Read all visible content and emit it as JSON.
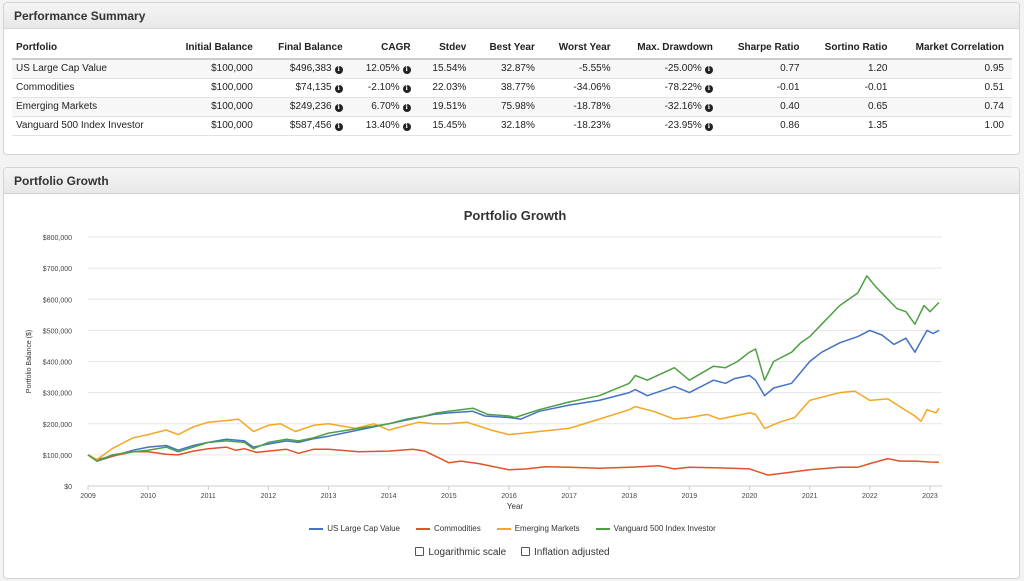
{
  "summary": {
    "title": "Performance Summary",
    "columns": [
      "Portfolio",
      "Initial Balance",
      "Final Balance",
      "CAGR",
      "Stdev",
      "Best Year",
      "Worst Year",
      "Max. Drawdown",
      "Sharpe Ratio",
      "Sortino Ratio",
      "Market Correlation"
    ],
    "rows": [
      {
        "portfolio": "US Large Cap Value",
        "initial": "$100,000",
        "final": "$496,383",
        "cagr": "12.05%",
        "stdev": "15.54%",
        "best": "32.87%",
        "worst": "-5.55%",
        "drawdown": "-25.00%",
        "sharpe": "0.77",
        "sortino": "1.20",
        "corr": "0.95"
      },
      {
        "portfolio": "Commodities",
        "initial": "$100,000",
        "final": "$74,135",
        "cagr": "-2.10%",
        "stdev": "22.03%",
        "best": "38.77%",
        "worst": "-34.06%",
        "drawdown": "-78.22%",
        "sharpe": "-0.01",
        "sortino": "-0.01",
        "corr": "0.51"
      },
      {
        "portfolio": "Emerging Markets",
        "initial": "$100,000",
        "final": "$249,236",
        "cagr": "6.70%",
        "stdev": "19.51%",
        "best": "75.98%",
        "worst": "-18.78%",
        "drawdown": "-32.16%",
        "sharpe": "0.40",
        "sortino": "0.65",
        "corr": "0.74"
      },
      {
        "portfolio": "Vanguard 500 Index Investor",
        "initial": "$100,000",
        "final": "$587,456",
        "cagr": "13.40%",
        "stdev": "15.45%",
        "best": "32.18%",
        "worst": "-18.23%",
        "drawdown": "-23.95%",
        "sharpe": "0.86",
        "sortino": "1.35",
        "corr": "1.00"
      }
    ],
    "info_icon": "info-circle-icon"
  },
  "growth": {
    "panel_title": "Portfolio Growth",
    "options": {
      "log_label": "Logarithmic scale",
      "inflation_label": "Inflation adjusted",
      "log_checked": false,
      "inflation_checked": false
    }
  },
  "chart_data": {
    "type": "line",
    "title": "Portfolio Growth",
    "xlabel": "Year",
    "ylabel": "Portfolio Balance ($)",
    "xlim": [
      2009.0,
      2023.2
    ],
    "ylim": [
      0,
      800000
    ],
    "xticks": [
      "2009",
      "2010",
      "2011",
      "2012",
      "2013",
      "2014",
      "2015",
      "2016",
      "2017",
      "2018",
      "2019",
      "2020",
      "2021",
      "2022",
      "2023"
    ],
    "yticks": [
      "$0",
      "$100,000",
      "$200,000",
      "$300,000",
      "$400,000",
      "$500,000",
      "$600,000",
      "$700,000",
      "$800,000"
    ],
    "grid": true,
    "legend_position": "bottom",
    "series": [
      {
        "name": "US Large Cap Value",
        "color": "#4472c4",
        "points": [
          [
            2009.0,
            100000
          ],
          [
            2009.15,
            80000
          ],
          [
            2009.4,
            95000
          ],
          [
            2009.75,
            115000
          ],
          [
            2010.0,
            125000
          ],
          [
            2010.3,
            130000
          ],
          [
            2010.5,
            115000
          ],
          [
            2010.75,
            130000
          ],
          [
            2011.0,
            140000
          ],
          [
            2011.3,
            150000
          ],
          [
            2011.6,
            145000
          ],
          [
            2011.75,
            125000
          ],
          [
            2012.0,
            135000
          ],
          [
            2012.3,
            145000
          ],
          [
            2012.5,
            140000
          ],
          [
            2012.75,
            152000
          ],
          [
            2013.0,
            160000
          ],
          [
            2013.5,
            180000
          ],
          [
            2014.0,
            200000
          ],
          [
            2014.25,
            210000
          ],
          [
            2014.5,
            220000
          ],
          [
            2014.75,
            230000
          ],
          [
            2015.0,
            235000
          ],
          [
            2015.4,
            240000
          ],
          [
            2015.6,
            225000
          ],
          [
            2016.0,
            220000
          ],
          [
            2016.2,
            215000
          ],
          [
            2016.5,
            240000
          ],
          [
            2017.0,
            260000
          ],
          [
            2017.5,
            275000
          ],
          [
            2018.0,
            300000
          ],
          [
            2018.1,
            310000
          ],
          [
            2018.3,
            290000
          ],
          [
            2018.75,
            320000
          ],
          [
            2019.0,
            300000
          ],
          [
            2019.4,
            340000
          ],
          [
            2019.6,
            330000
          ],
          [
            2019.75,
            345000
          ],
          [
            2020.0,
            355000
          ],
          [
            2020.1,
            340000
          ],
          [
            2020.25,
            290000
          ],
          [
            2020.4,
            315000
          ],
          [
            2020.7,
            330000
          ],
          [
            2020.85,
            365000
          ],
          [
            2021.0,
            400000
          ],
          [
            2021.2,
            430000
          ],
          [
            2021.5,
            460000
          ],
          [
            2021.8,
            480000
          ],
          [
            2022.0,
            500000
          ],
          [
            2022.2,
            485000
          ],
          [
            2022.4,
            455000
          ],
          [
            2022.6,
            475000
          ],
          [
            2022.75,
            430000
          ],
          [
            2022.95,
            500000
          ],
          [
            2023.05,
            490000
          ],
          [
            2023.15,
            500000
          ]
        ]
      },
      {
        "name": "Commodities",
        "color": "#e1522a",
        "points": [
          [
            2009.0,
            100000
          ],
          [
            2009.15,
            85000
          ],
          [
            2009.5,
            100000
          ],
          [
            2009.75,
            110000
          ],
          [
            2010.0,
            110000
          ],
          [
            2010.3,
            102000
          ],
          [
            2010.5,
            100000
          ],
          [
            2010.75,
            112000
          ],
          [
            2011.0,
            120000
          ],
          [
            2011.3,
            125000
          ],
          [
            2011.45,
            115000
          ],
          [
            2011.6,
            120000
          ],
          [
            2011.8,
            108000
          ],
          [
            2012.0,
            112000
          ],
          [
            2012.3,
            118000
          ],
          [
            2012.5,
            105000
          ],
          [
            2012.75,
            118000
          ],
          [
            2013.0,
            118000
          ],
          [
            2013.5,
            110000
          ],
          [
            2014.0,
            112000
          ],
          [
            2014.4,
            118000
          ],
          [
            2014.6,
            112000
          ],
          [
            2015.0,
            75000
          ],
          [
            2015.2,
            80000
          ],
          [
            2015.5,
            72000
          ],
          [
            2016.0,
            52000
          ],
          [
            2016.3,
            55000
          ],
          [
            2016.6,
            62000
          ],
          [
            2017.0,
            60000
          ],
          [
            2017.5,
            57000
          ],
          [
            2018.0,
            60000
          ],
          [
            2018.5,
            65000
          ],
          [
            2018.75,
            55000
          ],
          [
            2019.0,
            60000
          ],
          [
            2019.5,
            58000
          ],
          [
            2020.0,
            55000
          ],
          [
            2020.2,
            42000
          ],
          [
            2020.3,
            35000
          ],
          [
            2020.6,
            42000
          ],
          [
            2021.0,
            52000
          ],
          [
            2021.5,
            60000
          ],
          [
            2021.8,
            60000
          ],
          [
            2022.0,
            72000
          ],
          [
            2022.3,
            88000
          ],
          [
            2022.5,
            80000
          ],
          [
            2022.75,
            80000
          ],
          [
            2023.0,
            77000
          ],
          [
            2023.15,
            76000
          ]
        ]
      },
      {
        "name": "Emerging Markets",
        "color": "#f5a623",
        "points": [
          [
            2009.0,
            100000
          ],
          [
            2009.15,
            85000
          ],
          [
            2009.4,
            120000
          ],
          [
            2009.75,
            155000
          ],
          [
            2010.0,
            165000
          ],
          [
            2010.3,
            180000
          ],
          [
            2010.5,
            165000
          ],
          [
            2010.75,
            190000
          ],
          [
            2011.0,
            205000
          ],
          [
            2011.3,
            210000
          ],
          [
            2011.5,
            215000
          ],
          [
            2011.75,
            175000
          ],
          [
            2012.0,
            195000
          ],
          [
            2012.2,
            200000
          ],
          [
            2012.45,
            175000
          ],
          [
            2012.75,
            195000
          ],
          [
            2013.0,
            200000
          ],
          [
            2013.45,
            185000
          ],
          [
            2013.75,
            200000
          ],
          [
            2014.0,
            180000
          ],
          [
            2014.5,
            205000
          ],
          [
            2014.75,
            200000
          ],
          [
            2015.0,
            200000
          ],
          [
            2015.3,
            205000
          ],
          [
            2015.7,
            180000
          ],
          [
            2016.0,
            165000
          ],
          [
            2016.5,
            175000
          ],
          [
            2017.0,
            185000
          ],
          [
            2017.5,
            215000
          ],
          [
            2018.0,
            245000
          ],
          [
            2018.1,
            255000
          ],
          [
            2018.4,
            240000
          ],
          [
            2018.75,
            215000
          ],
          [
            2019.0,
            220000
          ],
          [
            2019.3,
            230000
          ],
          [
            2019.5,
            215000
          ],
          [
            2019.75,
            225000
          ],
          [
            2020.0,
            235000
          ],
          [
            2020.1,
            230000
          ],
          [
            2020.25,
            185000
          ],
          [
            2020.5,
            205000
          ],
          [
            2020.75,
            220000
          ],
          [
            2021.0,
            275000
          ],
          [
            2021.3,
            290000
          ],
          [
            2021.5,
            300000
          ],
          [
            2021.75,
            305000
          ],
          [
            2022.0,
            275000
          ],
          [
            2022.3,
            280000
          ],
          [
            2022.5,
            255000
          ],
          [
            2022.75,
            225000
          ],
          [
            2022.85,
            208000
          ],
          [
            2022.95,
            245000
          ],
          [
            2023.1,
            235000
          ],
          [
            2023.15,
            250000
          ]
        ]
      },
      {
        "name": "Vanguard 500 Index Investor",
        "color": "#4ea043",
        "points": [
          [
            2009.0,
            100000
          ],
          [
            2009.15,
            80000
          ],
          [
            2009.4,
            100000
          ],
          [
            2009.75,
            110000
          ],
          [
            2010.0,
            115000
          ],
          [
            2010.3,
            125000
          ],
          [
            2010.5,
            110000
          ],
          [
            2010.75,
            125000
          ],
          [
            2011.0,
            140000
          ],
          [
            2011.3,
            145000
          ],
          [
            2011.6,
            140000
          ],
          [
            2011.75,
            120000
          ],
          [
            2012.0,
            140000
          ],
          [
            2012.3,
            150000
          ],
          [
            2012.5,
            145000
          ],
          [
            2012.75,
            155000
          ],
          [
            2013.0,
            170000
          ],
          [
            2013.5,
            185000
          ],
          [
            2014.0,
            200000
          ],
          [
            2014.3,
            215000
          ],
          [
            2014.6,
            225000
          ],
          [
            2014.8,
            235000
          ],
          [
            2015.0,
            240000
          ],
          [
            2015.4,
            250000
          ],
          [
            2015.65,
            230000
          ],
          [
            2016.0,
            225000
          ],
          [
            2016.1,
            220000
          ],
          [
            2016.5,
            245000
          ],
          [
            2017.0,
            270000
          ],
          [
            2017.5,
            290000
          ],
          [
            2018.0,
            330000
          ],
          [
            2018.1,
            355000
          ],
          [
            2018.3,
            340000
          ],
          [
            2018.75,
            380000
          ],
          [
            2019.0,
            340000
          ],
          [
            2019.4,
            385000
          ],
          [
            2019.6,
            380000
          ],
          [
            2019.8,
            400000
          ],
          [
            2020.0,
            430000
          ],
          [
            2020.1,
            440000
          ],
          [
            2020.25,
            340000
          ],
          [
            2020.4,
            400000
          ],
          [
            2020.7,
            430000
          ],
          [
            2020.85,
            460000
          ],
          [
            2021.0,
            480000
          ],
          [
            2021.2,
            520000
          ],
          [
            2021.5,
            580000
          ],
          [
            2021.8,
            620000
          ],
          [
            2021.95,
            675000
          ],
          [
            2022.1,
            640000
          ],
          [
            2022.3,
            600000
          ],
          [
            2022.45,
            570000
          ],
          [
            2022.6,
            560000
          ],
          [
            2022.75,
            520000
          ],
          [
            2022.9,
            580000
          ],
          [
            2023.0,
            560000
          ],
          [
            2023.15,
            590000
          ]
        ]
      }
    ]
  }
}
